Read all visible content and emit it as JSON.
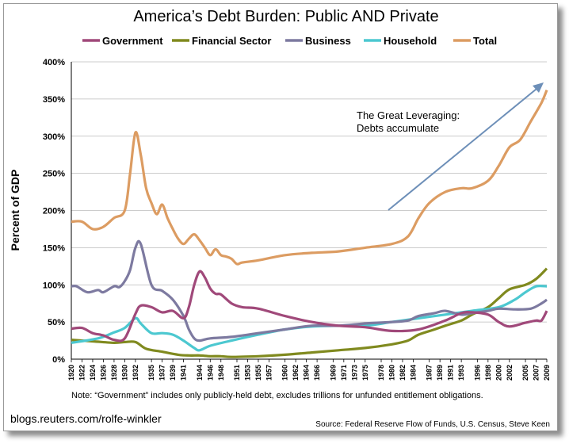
{
  "chart_data": {
    "type": "line",
    "title": "America’s Debt Burden:  Public AND Private",
    "ylabel": "Percent of GDP",
    "xlabel": "",
    "ylim": [
      0,
      400
    ],
    "yticks": [
      "0%",
      "50%",
      "100%",
      "150%",
      "200%",
      "250%",
      "300%",
      "350%",
      "400%"
    ],
    "xlim": [
      1920,
      2009
    ],
    "xticks": [
      "1920",
      "1922",
      "1924",
      "1926",
      "1928",
      "1930",
      "1932",
      "1935",
      "1937",
      "1939",
      "1941",
      "1944",
      "1946",
      "1948",
      "1951",
      "1953",
      "1955",
      "1957",
      "1960",
      "1962",
      "1964",
      "1966",
      "1969",
      "1971",
      "1973",
      "1975",
      "1978",
      "1980",
      "1982",
      "1984",
      "1987",
      "1989",
      "1991",
      "1993",
      "1996",
      "1998",
      "2000",
      "2002",
      "2005",
      "2007",
      "2009"
    ],
    "grid": "horizontal",
    "legend_position": "top",
    "series": [
      {
        "name": "Government",
        "color": "#a0497a",
        "x": [
          1920,
          1922,
          1924,
          1926,
          1928,
          1930,
          1932,
          1933,
          1935,
          1937,
          1939,
          1941,
          1942,
          1943,
          1944,
          1945,
          1946,
          1947,
          1948,
          1950,
          1952,
          1955,
          1960,
          1965,
          1970,
          1975,
          1980,
          1985,
          1990,
          1993,
          1995,
          1998,
          2000,
          2002,
          2005,
          2007,
          2008,
          2009
        ],
        "values": [
          41,
          42,
          35,
          32,
          26,
          28,
          61,
          72,
          70,
          63,
          65,
          55,
          70,
          100,
          118,
          110,
          95,
          88,
          87,
          75,
          70,
          68,
          58,
          50,
          45,
          43,
          38,
          40,
          52,
          62,
          63,
          60,
          50,
          44,
          49,
          52,
          52,
          65
        ]
      },
      {
        "name": "Financial Sector",
        "color": "#808a1f",
        "x": [
          1920,
          1924,
          1928,
          1930,
          1932,
          1934,
          1937,
          1940,
          1942,
          1944,
          1946,
          1948,
          1950,
          1955,
          1960,
          1965,
          1970,
          1975,
          1980,
          1983,
          1985,
          1988,
          1990,
          1993,
          1995,
          1998,
          2000,
          2002,
          2005,
          2007,
          2009
        ],
        "values": [
          26,
          24,
          22,
          23,
          23,
          14,
          10,
          6,
          5,
          5,
          4,
          4,
          3,
          4,
          6,
          9,
          12,
          15,
          20,
          25,
          33,
          40,
          45,
          52,
          60,
          70,
          82,
          94,
          100,
          108,
          122
        ]
      },
      {
        "name": "Business",
        "color": "#7d7aa0",
        "x": [
          1920,
          1921,
          1923,
          1925,
          1926,
          1928,
          1929,
          1930,
          1931,
          1932,
          1933,
          1935,
          1937,
          1939,
          1941,
          1942,
          1943,
          1944,
          1946,
          1950,
          1955,
          1960,
          1965,
          1970,
          1975,
          1980,
          1983,
          1985,
          1988,
          1990,
          1993,
          1995,
          1998,
          2000,
          2003,
          2006,
          2008,
          2009
        ],
        "values": [
          98,
          98,
          90,
          93,
          90,
          98,
          97,
          105,
          120,
          150,
          155,
          100,
          92,
          80,
          58,
          40,
          28,
          25,
          28,
          30,
          35,
          40,
          45,
          45,
          48,
          50,
          52,
          58,
          62,
          65,
          60,
          62,
          65,
          68,
          67,
          68,
          75,
          80
        ]
      },
      {
        "name": "Household",
        "color": "#4cc8d0",
        "x": [
          1920,
          1925,
          1928,
          1930,
          1932,
          1933,
          1935,
          1937,
          1939,
          1941,
          1943,
          1944,
          1946,
          1950,
          1955,
          1960,
          1965,
          1970,
          1975,
          1980,
          1985,
          1990,
          1995,
          2000,
          2003,
          2005,
          2007,
          2009
        ],
        "values": [
          22,
          28,
          36,
          42,
          55,
          48,
          35,
          35,
          33,
          25,
          15,
          12,
          18,
          25,
          33,
          40,
          44,
          45,
          45,
          50,
          55,
          60,
          65,
          70,
          80,
          90,
          98,
          98
        ]
      },
      {
        "name": "Total",
        "color": "#dc9c62",
        "x": [
          1920,
          1922,
          1924,
          1926,
          1928,
          1930,
          1931,
          1932,
          1933,
          1934,
          1935,
          1936,
          1937,
          1938,
          1939,
          1940,
          1941,
          1942,
          1943,
          1944,
          1945,
          1946,
          1947,
          1948,
          1949,
          1950,
          1951,
          1952,
          1955,
          1960,
          1965,
          1970,
          1975,
          1980,
          1983,
          1985,
          1987,
          1990,
          1993,
          1995,
          1998,
          2000,
          2002,
          2004,
          2006,
          2008,
          2009
        ],
        "values": [
          185,
          185,
          175,
          178,
          190,
          200,
          250,
          305,
          275,
          230,
          210,
          195,
          208,
          190,
          175,
          162,
          155,
          162,
          168,
          160,
          150,
          140,
          148,
          140,
          138,
          135,
          128,
          130,
          133,
          140,
          143,
          145,
          150,
          155,
          165,
          190,
          210,
          225,
          230,
          230,
          240,
          260,
          285,
          295,
          320,
          345,
          362
        ]
      }
    ]
  },
  "annotation": {
    "line1": "The Great Leveraging:",
    "line2": "Debts accumulate"
  },
  "note": "Note: “Government” includes only publicly-held debt, excludes trillions for unfunded entitlement obligations.",
  "credit": "blogs.reuters.com/rolfe-winkler",
  "source": "Source: Federal Reserve Flow of Funds, U.S. Census, Steve Keen"
}
